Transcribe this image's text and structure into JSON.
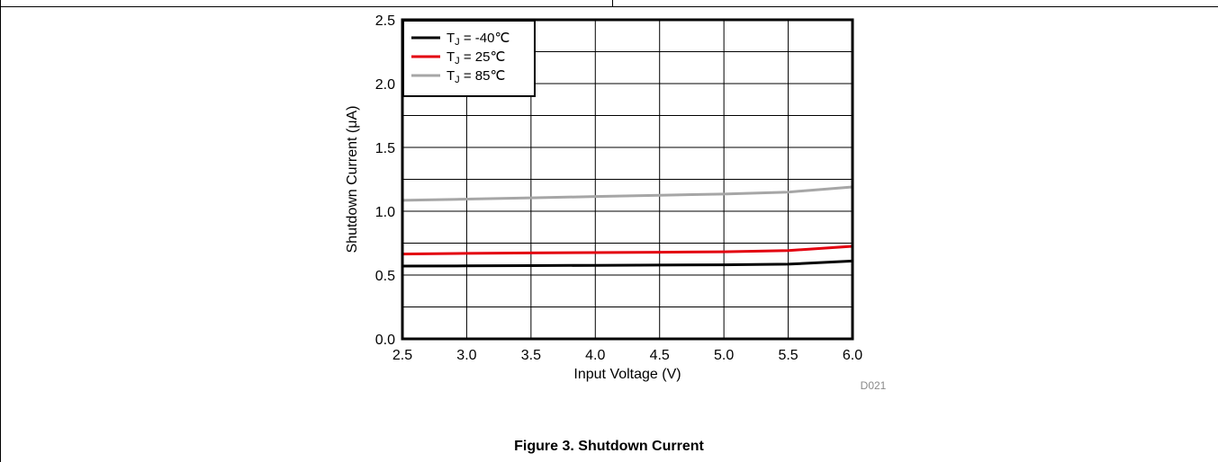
{
  "caption": "Figure 3. Shutdown Current",
  "figure_code": "D021",
  "chart_data": {
    "type": "line",
    "title": "",
    "xlabel": "Input Voltage (V)",
    "ylabel": "Shutdown Current (μA)",
    "xlim": [
      2.5,
      6.0
    ],
    "ylim": [
      0.0,
      2.5
    ],
    "x_ticks": [
      "2.5",
      "3.0",
      "3.5",
      "4.0",
      "4.5",
      "5.0",
      "5.5",
      "6.0"
    ],
    "y_ticks": [
      "0.0",
      "0.5",
      "1.0",
      "1.5",
      "2.0",
      "2.5"
    ],
    "grid": true,
    "legend_position": "top-left",
    "x": [
      2.5,
      3.0,
      3.5,
      4.0,
      4.5,
      5.0,
      5.5,
      6.0
    ],
    "series": [
      {
        "name": "TJ = -40°C",
        "legend_label": "= -40℃",
        "color": "#000000",
        "values": [
          0.57,
          0.572,
          0.574,
          0.576,
          0.578,
          0.58,
          0.585,
          0.61
        ]
      },
      {
        "name": "TJ = 25°C",
        "legend_label": "=  25℃",
        "color": "#e3000f",
        "values": [
          0.665,
          0.67,
          0.673,
          0.676,
          0.679,
          0.682,
          0.692,
          0.725
        ]
      },
      {
        "name": "TJ = 85°C",
        "legend_label": "=  85℃",
        "color": "#a6a6a6",
        "values": [
          1.085,
          1.095,
          1.105,
          1.115,
          1.125,
          1.135,
          1.15,
          1.19
        ]
      }
    ]
  }
}
